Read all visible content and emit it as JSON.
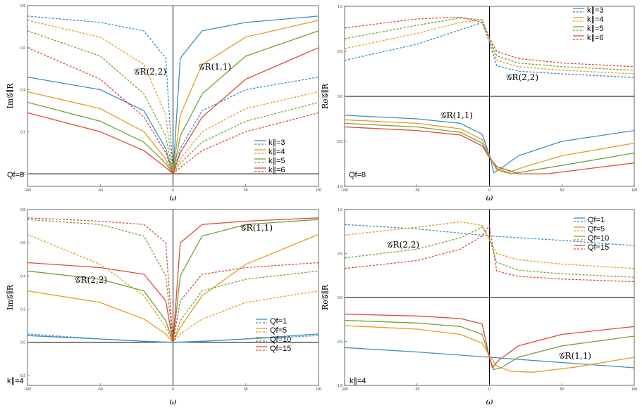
{
  "figure": {
    "x_axis_label": "ω",
    "ticks_x": [
      "-100",
      "-50",
      "0",
      "50",
      "100"
    ]
  },
  "chart_data": [
    {
      "type": "line",
      "id": "top-left",
      "ylabel": "Im𝒢∥R",
      "xlabel": "ω",
      "xlim": [
        -100,
        100
      ],
      "ylim": [
        -0.06,
        0.8
      ],
      "yticks": [
        "0.0",
        "0.2",
        "0.4",
        "0.6",
        "0.8"
      ],
      "tag": "Qf=8",
      "legend": [
        "k∥=3",
        "k∥=4",
        "k∥=5",
        "k∥=6"
      ],
      "annotations": [
        "𝒢R(2,2)",
        "𝒢R(1,1)"
      ],
      "series": [
        {
          "name": "k∥=3",
          "component": "(1,1)",
          "style": "solid",
          "color": "#3B8FC4",
          "x": [
            -100,
            -50,
            -20,
            -5,
            0,
            5,
            20,
            50,
            100
          ],
          "y": [
            0.46,
            0.4,
            0.3,
            0.12,
            0.0,
            0.55,
            0.68,
            0.72,
            0.75
          ]
        },
        {
          "name": "k∥=3",
          "component": "(2,2)",
          "style": "dashed",
          "color": "#3B8FC4",
          "x": [
            -100,
            -50,
            -20,
            -5,
            0,
            5,
            20,
            50,
            100
          ],
          "y": [
            0.75,
            0.72,
            0.68,
            0.55,
            0.0,
            0.12,
            0.3,
            0.4,
            0.46
          ]
        },
        {
          "name": "k∥=4",
          "component": "(1,1)",
          "style": "solid",
          "color": "#E79B23",
          "x": [
            -100,
            -50,
            -20,
            -5,
            0,
            5,
            20,
            50,
            100
          ],
          "y": [
            0.39,
            0.31,
            0.2,
            0.07,
            0.0,
            0.28,
            0.52,
            0.65,
            0.73
          ]
        },
        {
          "name": "k∥=4",
          "component": "(2,2)",
          "style": "dashed",
          "color": "#E79B23",
          "x": [
            -100,
            -50,
            -20,
            -5,
            0,
            5,
            20,
            50,
            100
          ],
          "y": [
            0.73,
            0.65,
            0.52,
            0.28,
            0.0,
            0.07,
            0.2,
            0.31,
            0.39
          ]
        },
        {
          "name": "k∥=5",
          "component": "(1,1)",
          "style": "solid",
          "color": "#6FA33A",
          "x": [
            -100,
            -50,
            -20,
            -5,
            0,
            5,
            20,
            50,
            100
          ],
          "y": [
            0.34,
            0.25,
            0.15,
            0.05,
            0.0,
            0.18,
            0.38,
            0.56,
            0.68
          ]
        },
        {
          "name": "k∥=5",
          "component": "(2,2)",
          "style": "dashed",
          "color": "#6FA33A",
          "x": [
            -100,
            -50,
            -20,
            -5,
            0,
            5,
            20,
            50,
            100
          ],
          "y": [
            0.68,
            0.56,
            0.38,
            0.18,
            0.0,
            0.05,
            0.15,
            0.25,
            0.34
          ]
        },
        {
          "name": "k∥=6",
          "component": "(1,1)",
          "style": "solid",
          "color": "#DE4B3A",
          "x": [
            -100,
            -50,
            -20,
            -5,
            0,
            5,
            20,
            50,
            100
          ],
          "y": [
            0.29,
            0.2,
            0.11,
            0.03,
            0.0,
            0.1,
            0.27,
            0.45,
            0.6
          ]
        },
        {
          "name": "k∥=6",
          "component": "(2,2)",
          "style": "dashed",
          "color": "#DE4B3A",
          "x": [
            -100,
            -50,
            -20,
            -5,
            0,
            5,
            20,
            50,
            100
          ],
          "y": [
            0.6,
            0.45,
            0.27,
            0.1,
            0.0,
            0.03,
            0.11,
            0.2,
            0.29
          ]
        }
      ]
    },
    {
      "type": "line",
      "id": "top-right",
      "ylabel": "Re𝒢∥R",
      "xlabel": "ω",
      "xlim": [
        -100,
        100
      ],
      "ylim": [
        -1.0,
        1.0
      ],
      "yticks": [
        "-1.0",
        "-0.5",
        "0.0",
        "0.5",
        "1.0"
      ],
      "tag": "Qf=8",
      "legend": [
        "k∥=3",
        "k∥=4",
        "k∥=5",
        "k∥=6"
      ],
      "annotations": [
        "𝒢R(2,2)",
        "𝒢R(1,1)"
      ],
      "series": [
        {
          "name": "k∥=3",
          "component": "(2,2)",
          "style": "dashed",
          "color": "#3B8FC4",
          "x": [
            -100,
            -50,
            -20,
            -5,
            0,
            5,
            20,
            50,
            100
          ],
          "y": [
            0.4,
            0.58,
            0.74,
            0.82,
            0.6,
            0.34,
            0.28,
            0.25,
            0.21
          ]
        },
        {
          "name": "k∥=4",
          "component": "(2,2)",
          "style": "dashed",
          "color": "#E79B23",
          "x": [
            -100,
            -50,
            -20,
            -5,
            0,
            5,
            20,
            50,
            100
          ],
          "y": [
            0.53,
            0.7,
            0.82,
            0.85,
            0.63,
            0.4,
            0.33,
            0.29,
            0.25
          ]
        },
        {
          "name": "k∥=5",
          "component": "(2,2)",
          "style": "dashed",
          "color": "#6FA33A",
          "x": [
            -100,
            -50,
            -20,
            -5,
            0,
            5,
            20,
            50,
            100
          ],
          "y": [
            0.64,
            0.79,
            0.87,
            0.85,
            0.64,
            0.45,
            0.37,
            0.33,
            0.29
          ]
        },
        {
          "name": "k∥=6",
          "component": "(2,2)",
          "style": "dashed",
          "color": "#DE4B3A",
          "x": [
            -100,
            -50,
            -20,
            -5,
            0,
            5,
            20,
            50,
            100
          ],
          "y": [
            0.76,
            0.86,
            0.88,
            0.82,
            0.65,
            0.5,
            0.42,
            0.37,
            0.33
          ]
        },
        {
          "name": "k∥=3",
          "component": "(1,1)",
          "style": "solid",
          "color": "#3B8FC4",
          "x": [
            -100,
            -50,
            -20,
            -5,
            0,
            3,
            8,
            20,
            50,
            100
          ],
          "y": [
            -0.21,
            -0.25,
            -0.3,
            -0.42,
            -0.65,
            -0.85,
            -0.8,
            -0.66,
            -0.5,
            -0.38
          ]
        },
        {
          "name": "k∥=4",
          "component": "(1,1)",
          "style": "solid",
          "color": "#E79B23",
          "x": [
            -100,
            -50,
            -20,
            -5,
            0,
            5,
            12,
            25,
            50,
            100
          ],
          "y": [
            -0.26,
            -0.3,
            -0.36,
            -0.48,
            -0.66,
            -0.82,
            -0.85,
            -0.78,
            -0.66,
            -0.52
          ]
        },
        {
          "name": "k∥=5",
          "component": "(1,1)",
          "style": "solid",
          "color": "#6FA33A",
          "x": [
            -100,
            -50,
            -20,
            -5,
            0,
            5,
            15,
            30,
            60,
            100
          ],
          "y": [
            -0.3,
            -0.34,
            -0.4,
            -0.52,
            -0.67,
            -0.8,
            -0.86,
            -0.82,
            -0.74,
            -0.63
          ]
        },
        {
          "name": "k∥=6",
          "component": "(1,1)",
          "style": "solid",
          "color": "#DE4B3A",
          "x": [
            -100,
            -50,
            -20,
            -5,
            0,
            5,
            20,
            40,
            70,
            100
          ],
          "y": [
            -0.34,
            -0.38,
            -0.43,
            -0.55,
            -0.68,
            -0.78,
            -0.86,
            -0.86,
            -0.8,
            -0.74
          ]
        }
      ]
    },
    {
      "type": "line",
      "id": "bottom-left",
      "ylabel": "Im𝒢∥R",
      "xlabel": "ω",
      "xlim": [
        -100,
        100
      ],
      "ylim": [
        -0.26,
        0.8
      ],
      "yticks": [
        "-0.2",
        "0.0",
        "0.2",
        "0.4",
        "0.6",
        "0.8"
      ],
      "tag": "k∥=4",
      "legend": [
        "Qf=1",
        "Qf=5",
        "Qf=10",
        "Qf=15"
      ],
      "annotations": [
        "𝒢R(2,2)",
        "𝒢R(1,1)"
      ],
      "series": [
        {
          "name": "Qf=1",
          "component": "(1,1)",
          "style": "solid",
          "color": "#3B8FC4",
          "x": [
            -100,
            -50,
            -20,
            -5,
            0,
            5,
            20,
            50,
            100
          ],
          "y": [
            0.04,
            0.02,
            0.006,
            0.001,
            0.0,
            0.001,
            0.006,
            0.02,
            0.05
          ]
        },
        {
          "name": "Qf=1",
          "component": "(2,2)",
          "style": "dashed",
          "color": "#3B8FC4",
          "x": [
            -100,
            -50,
            -20,
            -5,
            0,
            5,
            20,
            50,
            100
          ],
          "y": [
            0.05,
            0.02,
            0.006,
            0.001,
            0.0,
            0.001,
            0.006,
            0.02,
            0.04
          ]
        },
        {
          "name": "Qf=5",
          "component": "(1,1)",
          "style": "solid",
          "color": "#E79B23",
          "x": [
            -100,
            -50,
            -20,
            -5,
            0,
            5,
            20,
            50,
            100
          ],
          "y": [
            0.31,
            0.24,
            0.14,
            0.05,
            0.0,
            0.09,
            0.28,
            0.47,
            0.65
          ]
        },
        {
          "name": "Qf=5",
          "component": "(2,2)",
          "style": "dashed",
          "color": "#E79B23",
          "x": [
            -100,
            -50,
            -20,
            -5,
            0,
            5,
            20,
            50,
            100
          ],
          "y": [
            0.65,
            0.47,
            0.28,
            0.09,
            0.0,
            0.05,
            0.14,
            0.24,
            0.31
          ]
        },
        {
          "name": "Qf=10",
          "component": "(1,1)",
          "style": "solid",
          "color": "#6FA33A",
          "x": [
            -100,
            -50,
            -20,
            -5,
            0,
            5,
            20,
            50,
            100
          ],
          "y": [
            0.43,
            0.38,
            0.31,
            0.13,
            0.0,
            0.4,
            0.64,
            0.71,
            0.74
          ]
        },
        {
          "name": "Qf=10",
          "component": "(2,2)",
          "style": "dashed",
          "color": "#6FA33A",
          "x": [
            -100,
            -50,
            -20,
            -5,
            0,
            5,
            20,
            50,
            100
          ],
          "y": [
            0.74,
            0.71,
            0.64,
            0.4,
            0.0,
            0.13,
            0.31,
            0.38,
            0.43
          ]
        },
        {
          "name": "Qf=15",
          "component": "(1,1)",
          "style": "solid",
          "color": "#DE4B3A",
          "x": [
            -100,
            -50,
            -20,
            -5,
            0,
            5,
            20,
            50,
            100
          ],
          "y": [
            0.48,
            0.45,
            0.41,
            0.25,
            0.0,
            0.6,
            0.71,
            0.73,
            0.75
          ]
        },
        {
          "name": "Qf=15",
          "component": "(2,2)",
          "style": "dashed",
          "color": "#DE4B3A",
          "x": [
            -100,
            -50,
            -20,
            -5,
            0,
            5,
            20,
            50,
            100
          ],
          "y": [
            0.75,
            0.73,
            0.71,
            0.6,
            0.0,
            0.25,
            0.41,
            0.45,
            0.48
          ]
        }
      ]
    },
    {
      "type": "line",
      "id": "bottom-right",
      "ylabel": "Re𝒢∥R",
      "xlabel": "ω",
      "xlim": [
        -100,
        100
      ],
      "ylim": [
        -1.0,
        1.0
      ],
      "yticks": [
        "-1.0",
        "-0.5",
        "0.0",
        "0.5",
        "1.0"
      ],
      "tag": "k∥=4",
      "legend": [
        "Qf=1",
        "Qf=5",
        "Qf=10",
        "Qf=15"
      ],
      "annotations": [
        "𝒢R(2,2)",
        "𝒢R(1,1)"
      ],
      "series": [
        {
          "name": "Qf=1",
          "component": "(2,2)",
          "style": "dashed",
          "color": "#3B8FC4",
          "x": [
            -100,
            -50,
            0,
            50,
            100
          ],
          "y": [
            0.83,
            0.78,
            0.7,
            0.65,
            0.59
          ]
        },
        {
          "name": "Qf=5",
          "component": "(2,2)",
          "style": "dashed",
          "color": "#E79B23",
          "x": [
            -100,
            -50,
            -20,
            -5,
            0,
            5,
            20,
            50,
            100
          ],
          "y": [
            0.71,
            0.8,
            0.86,
            0.82,
            0.65,
            0.5,
            0.43,
            0.38,
            0.33
          ]
        },
        {
          "name": "Qf=10",
          "component": "(2,2)",
          "style": "dashed",
          "color": "#6FA33A",
          "x": [
            -100,
            -50,
            -20,
            -5,
            0,
            5,
            20,
            50,
            100
          ],
          "y": [
            0.45,
            0.55,
            0.68,
            0.8,
            0.68,
            0.4,
            0.31,
            0.27,
            0.23
          ]
        },
        {
          "name": "Qf=15",
          "component": "(2,2)",
          "style": "dashed",
          "color": "#DE4B3A",
          "x": [
            -100,
            -50,
            -20,
            -5,
            0,
            5,
            20,
            50,
            100
          ],
          "y": [
            0.33,
            0.42,
            0.55,
            0.7,
            0.82,
            0.3,
            0.24,
            0.21,
            0.18
          ]
        },
        {
          "name": "Qf=1",
          "component": "(1,1)",
          "style": "solid",
          "color": "#3B8FC4",
          "x": [
            -100,
            -50,
            0,
            50,
            100
          ],
          "y": [
            -0.57,
            -0.62,
            -0.68,
            -0.74,
            -0.8
          ]
        },
        {
          "name": "Qf=5",
          "component": "(1,1)",
          "style": "solid",
          "color": "#E79B23",
          "x": [
            -100,
            -50,
            -20,
            -5,
            0,
            5,
            15,
            30,
            60,
            100
          ],
          "y": [
            -0.32,
            -0.36,
            -0.42,
            -0.52,
            -0.66,
            -0.78,
            -0.84,
            -0.85,
            -0.79,
            -0.68
          ]
        },
        {
          "name": "Qf=10",
          "component": "(1,1)",
          "style": "solid",
          "color": "#6FA33A",
          "x": [
            -100,
            -50,
            -20,
            -5,
            0,
            3,
            8,
            20,
            50,
            100
          ],
          "y": [
            -0.26,
            -0.29,
            -0.33,
            -0.42,
            -0.68,
            -0.82,
            -0.8,
            -0.68,
            -0.55,
            -0.44
          ]
        },
        {
          "name": "Qf=15",
          "component": "(1,1)",
          "style": "solid",
          "color": "#DE4B3A",
          "x": [
            -100,
            -50,
            -20,
            -5,
            0,
            2,
            6,
            20,
            50,
            100
          ],
          "y": [
            -0.19,
            -0.21,
            -0.24,
            -0.3,
            -0.68,
            -0.8,
            -0.72,
            -0.55,
            -0.42,
            -0.33
          ]
        }
      ]
    }
  ]
}
